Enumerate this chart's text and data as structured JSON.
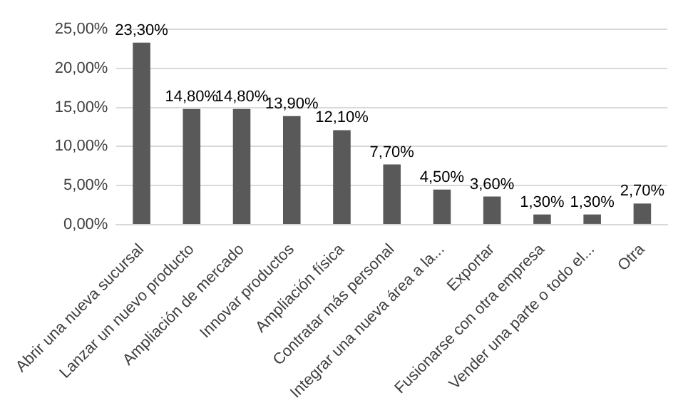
{
  "chart_data": {
    "type": "bar",
    "categories": [
      "Abrir una nueva sucursal",
      "Lanzar un nuevo producto",
      "Ampliación de mercado",
      "Innovar productos",
      "Ampliación física",
      "Contratar más personal",
      "Integrar una nueva área a la...",
      "Exportar",
      "Fusionarse con otra empresa",
      "Vender una parte o todo el...",
      "Otra"
    ],
    "values": [
      23.3,
      14.8,
      14.8,
      13.9,
      12.1,
      7.7,
      4.5,
      3.6,
      1.3,
      1.3,
      2.7
    ],
    "value_labels": [
      "23,30%",
      "14,80%",
      "14,80%",
      "13,90%",
      "12,10%",
      "7,70%",
      "4,50%",
      "3,60%",
      "1,30%",
      "1,30%",
      "2,70%"
    ],
    "color": "#595959",
    "ylim": [
      0,
      25
    ],
    "yticks": [
      {
        "value": 0,
        "label": "0,00%"
      },
      {
        "value": 5,
        "label": "5,00%"
      },
      {
        "value": 10,
        "label": "10,00%"
      },
      {
        "value": 15,
        "label": "15,00%"
      },
      {
        "value": 20,
        "label": "20,00%"
      },
      {
        "value": 25,
        "label": "25,00%"
      }
    ],
    "grid": "y"
  }
}
